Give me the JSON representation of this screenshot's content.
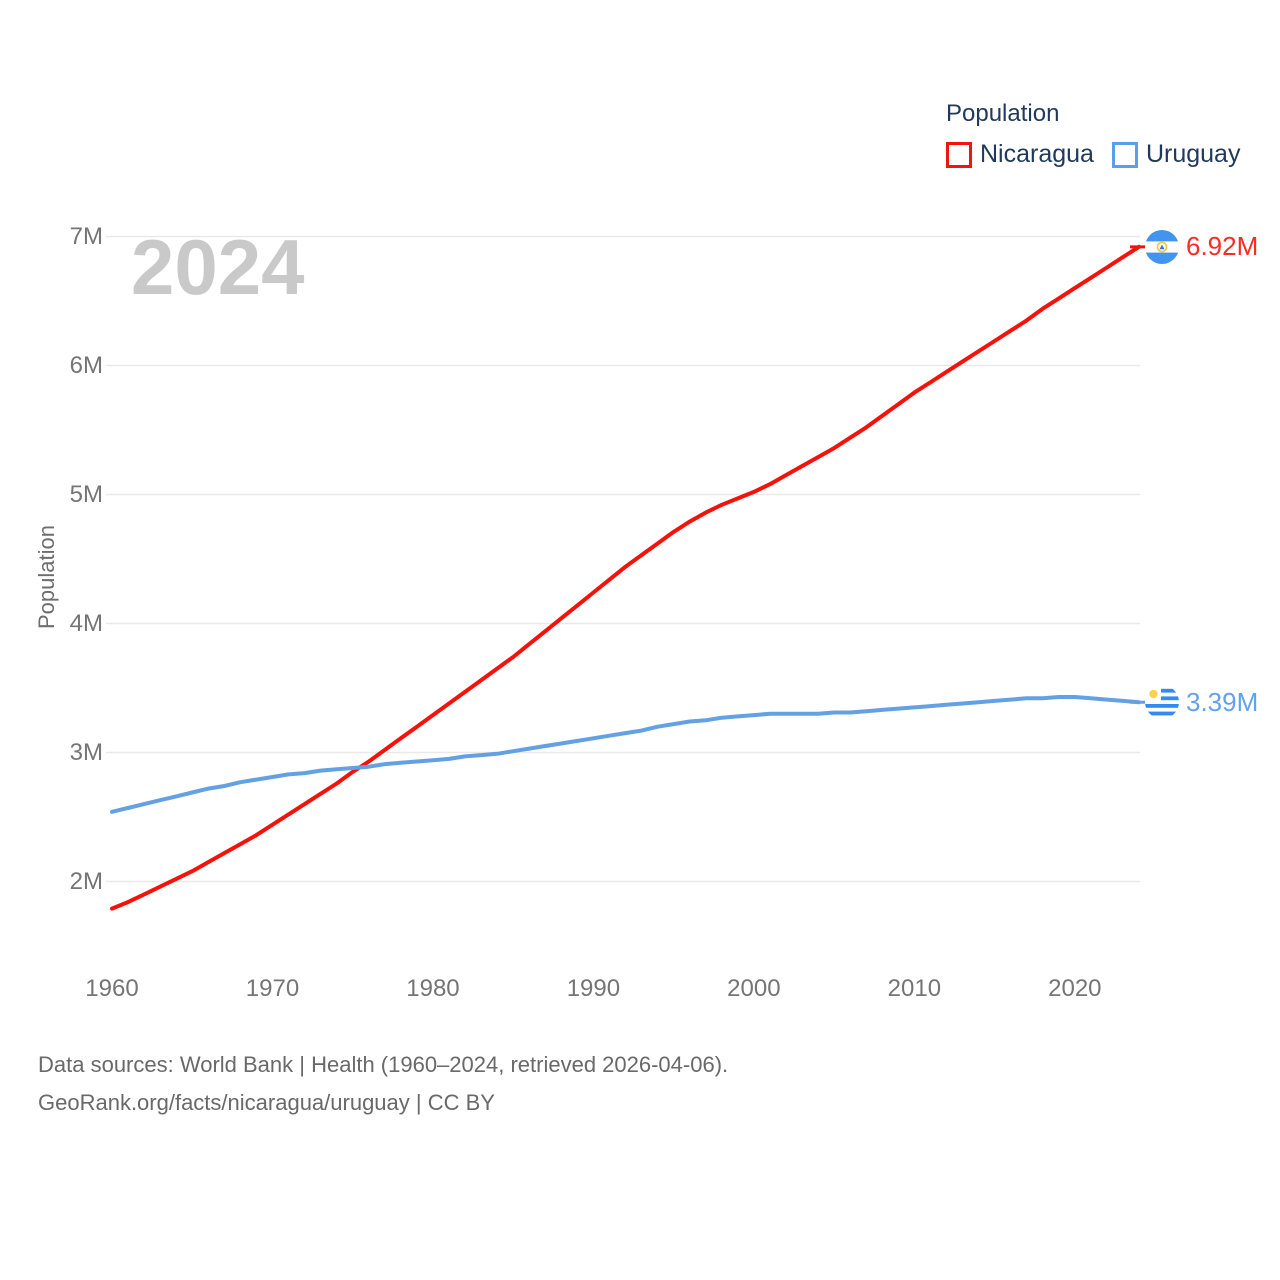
{
  "legend": {
    "title": "Population",
    "items": [
      {
        "label": "Nicaragua",
        "color": "#f3140f"
      },
      {
        "label": "Uruguay",
        "color": "#5a9fe8"
      }
    ]
  },
  "watermark": "2024",
  "colors": {
    "nicaragua_line": "#f5120b",
    "uruguay_line": "#63a1e4",
    "nicaragua_label": "#fb2c25",
    "uruguay_label": "#63a1e8",
    "grid": "#e9e9e9",
    "tick_text": "#757575",
    "legend_text": "#21395c",
    "watermark": "#c9c9c9",
    "footer_text": "#696969"
  },
  "end_labels": [
    {
      "series": "Nicaragua",
      "value": "6.92M",
      "flag": "nicaragua-flag",
      "color": "#fb2c25"
    },
    {
      "series": "Uruguay",
      "value": "3.39M",
      "flag": "uruguay-flag",
      "color": "#63a1e8"
    }
  ],
  "footer": {
    "line1": "Data sources: World Bank | Health (1960–2024, retrieved 2026-04-06).",
    "line2": "GeoRank.org/facts/nicaragua/uruguay | CC BY"
  },
  "chart_data": {
    "type": "line",
    "title": "Population",
    "xlabel": "",
    "ylabel": "Population",
    "x_start": 1960,
    "x_end": 2024,
    "ylim_millions": [
      2,
      7
    ],
    "grid": true,
    "legend_position": "top-right",
    "current_year_shown": "2024",
    "yticks": [
      {
        "label": "7M",
        "value": 7
      },
      {
        "label": "6M",
        "value": 6
      },
      {
        "label": "5M",
        "value": 5
      },
      {
        "label": "4M",
        "value": 4
      },
      {
        "label": "3M",
        "value": 3
      },
      {
        "label": "2M",
        "value": 2
      }
    ],
    "xticks": [
      {
        "label": "1960",
        "value": 1960
      },
      {
        "label": "1970",
        "value": 1970
      },
      {
        "label": "1980",
        "value": 1980
      },
      {
        "label": "1990",
        "value": 1990
      },
      {
        "label": "2000",
        "value": 2000
      },
      {
        "label": "2010",
        "value": 2010
      },
      {
        "label": "2020",
        "value": 2020
      }
    ],
    "series": [
      {
        "name": "Nicaragua",
        "color": "#f5120b",
        "end_label": "6.92M",
        "values_millions": [
          1.79,
          1.84,
          1.9,
          1.96,
          2.02,
          2.08,
          2.15,
          2.22,
          2.29,
          2.36,
          2.44,
          2.52,
          2.6,
          2.68,
          2.76,
          2.85,
          2.93,
          3.02,
          3.11,
          3.2,
          3.29,
          3.38,
          3.47,
          3.56,
          3.65,
          3.74,
          3.84,
          3.94,
          4.04,
          4.14,
          4.24,
          4.34,
          4.44,
          4.53,
          4.62,
          4.71,
          4.79,
          4.86,
          4.92,
          4.97,
          5.02,
          5.08,
          5.15,
          5.22,
          5.29,
          5.36,
          5.44,
          5.52,
          5.61,
          5.7,
          5.79,
          5.87,
          5.95,
          6.03,
          6.11,
          6.19,
          6.27,
          6.35,
          6.44,
          6.52,
          6.6,
          6.68,
          6.76,
          6.84,
          6.92
        ]
      },
      {
        "name": "Uruguay",
        "color": "#63a1e4",
        "end_label": "3.39M",
        "values_millions": [
          2.54,
          2.57,
          2.6,
          2.63,
          2.66,
          2.69,
          2.72,
          2.74,
          2.77,
          2.79,
          2.81,
          2.83,
          2.84,
          2.86,
          2.87,
          2.88,
          2.89,
          2.91,
          2.92,
          2.93,
          2.94,
          2.95,
          2.97,
          2.98,
          2.99,
          3.01,
          3.03,
          3.05,
          3.07,
          3.09,
          3.11,
          3.13,
          3.15,
          3.17,
          3.2,
          3.22,
          3.24,
          3.25,
          3.27,
          3.28,
          3.29,
          3.3,
          3.3,
          3.3,
          3.3,
          3.31,
          3.31,
          3.32,
          3.33,
          3.34,
          3.35,
          3.36,
          3.37,
          3.38,
          3.39,
          3.4,
          3.41,
          3.42,
          3.42,
          3.43,
          3.43,
          3.42,
          3.41,
          3.4,
          3.39
        ]
      }
    ]
  }
}
